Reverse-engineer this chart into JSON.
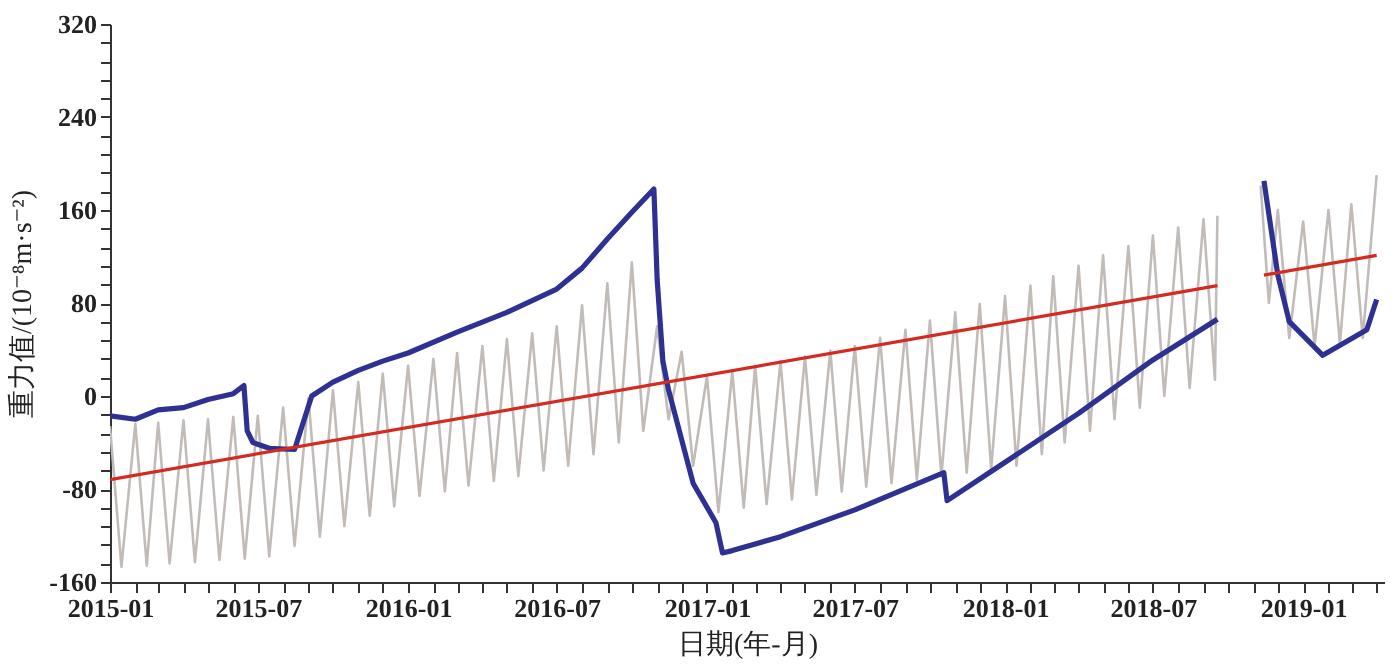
{
  "chart_data": {
    "type": "line",
    "xlabel": "日期(年-月)",
    "ylabel": "重力值/(10⁻⁸m·s⁻²)",
    "xlim": [
      "2015-01-01",
      "2019-04-10"
    ],
    "xticks": [
      "2015-01",
      {
        "value": "2015-02",
        "label": null
      },
      {
        "value": "2015-03",
        "label": null
      },
      {
        "value": "2015-04",
        "label": null
      },
      {
        "value": "2015-05",
        "label": null
      },
      {
        "value": "2015-06",
        "label": null
      },
      "2015-07",
      {
        "value": "2015-08",
        "label": null
      },
      {
        "value": "2015-09",
        "label": null
      },
      {
        "value": "2015-10",
        "label": null
      },
      {
        "value": "2015-11",
        "label": null
      },
      {
        "value": "2015-12",
        "label": null
      },
      "2016-01",
      {
        "value": "2016-02",
        "label": null
      },
      {
        "value": "2016-03",
        "label": null
      },
      {
        "value": "2016-04",
        "label": null
      },
      {
        "value": "2016-05",
        "label": null
      },
      {
        "value": "2016-06",
        "label": null
      },
      "2016-07",
      {
        "value": "2016-08",
        "label": null
      },
      {
        "value": "2016-09",
        "label": null
      },
      {
        "value": "2016-10",
        "label": null
      },
      {
        "value": "2016-11",
        "label": null
      },
      {
        "value": "2016-12",
        "label": null
      },
      "2017-01",
      {
        "value": "2017-02",
        "label": null
      },
      {
        "value": "2017-03",
        "label": null
      },
      {
        "value": "2017-04",
        "label": null
      },
      {
        "value": "2017-05",
        "label": null
      },
      {
        "value": "2017-06",
        "label": null
      },
      "2017-07",
      {
        "value": "2017-08",
        "label": null
      },
      {
        "value": "2017-09",
        "label": null
      },
      {
        "value": "2017-10",
        "label": null
      },
      {
        "value": "2017-11",
        "label": null
      },
      {
        "value": "2017-12",
        "label": null
      },
      "2018-01",
      {
        "value": "2018-02",
        "label": null
      },
      {
        "value": "2018-03",
        "label": null
      },
      {
        "value": "2018-04",
        "label": null
      },
      {
        "value": "2018-05",
        "label": null
      },
      {
        "value": "2018-06",
        "label": null
      },
      "2018-07",
      {
        "value": "2018-08",
        "label": null
      },
      {
        "value": "2018-09",
        "label": null
      },
      {
        "value": "2018-10",
        "label": null
      },
      {
        "value": "2018-11",
        "label": null
      },
      {
        "value": "2018-12",
        "label": null
      },
      "2019-01",
      {
        "value": "2019-02",
        "label": null
      },
      {
        "value": "2019-03",
        "label": null
      },
      {
        "value": "2019-04",
        "label": null
      }
    ],
    "ylim": [
      -160,
      320
    ],
    "yticks": [
      -160,
      {
        "value": -144,
        "label": null
      },
      {
        "value": -128,
        "label": null
      },
      {
        "value": -112,
        "label": null
      },
      {
        "value": -96,
        "label": null
      },
      -80,
      {
        "value": -64,
        "label": null
      },
      {
        "value": -48,
        "label": null
      },
      {
        "value": -32,
        "label": null
      },
      {
        "value": -16,
        "label": null
      },
      0,
      {
        "value": 16,
        "label": null
      },
      {
        "value": 32,
        "label": null
      },
      {
        "value": 48,
        "label": null
      },
      {
        "value": 64,
        "label": null
      },
      80,
      {
        "value": 96,
        "label": null
      },
      {
        "value": 112,
        "label": null
      },
      {
        "value": 128,
        "label": null
      },
      {
        "value": 144,
        "label": null
      },
      160,
      {
        "value": 176,
        "label": null
      },
      {
        "value": 192,
        "label": null
      },
      {
        "value": 208,
        "label": null
      },
      {
        "value": 224,
        "label": null
      },
      240,
      {
        "value": 256,
        "label": null
      },
      {
        "value": 272,
        "label": null
      },
      {
        "value": 288,
        "label": null
      },
      {
        "value": 304,
        "label": null
      },
      320
    ],
    "series": [
      {
        "color": "#c2bcb9",
        "x": [
          "2015-01-01",
          "2015-01-15",
          "2015-02-01",
          "2015-02-15",
          "2015-03-01",
          "2015-03-15",
          "2015-04-01",
          "2015-04-15",
          "2015-05-01",
          "2015-05-15",
          "2015-06-01",
          "2015-06-15",
          "2015-07-01",
          "2015-07-15",
          "2015-08-01",
          "2015-08-15",
          "2015-09-01",
          "2015-09-15",
          "2015-10-01",
          "2015-10-15",
          "2015-11-01",
          "2015-11-15",
          "2015-12-01",
          "2015-12-15",
          "2016-01-01",
          "2016-01-15",
          "2016-02-01",
          "2016-02-15",
          "2016-03-01",
          "2016-03-15",
          "2016-04-01",
          "2016-04-15",
          "2016-05-01",
          "2016-05-15",
          "2016-06-01",
          "2016-06-15",
          "2016-07-01",
          "2016-07-15",
          "2016-08-01",
          "2016-08-15",
          "2016-09-01",
          "2016-09-15",
          "2016-10-01",
          "2016-10-15",
          "2016-11-01",
          "2016-11-15",
          "2016-12-01",
          "2016-12-15",
          "2017-01-01",
          "2017-01-15",
          "2017-02-01",
          "2017-02-15",
          "2017-03-01",
          "2017-03-15",
          "2017-04-01",
          "2017-04-15",
          "2017-05-01",
          "2017-05-15",
          "2017-06-01",
          "2017-06-15",
          "2017-07-01",
          "2017-07-15",
          "2017-08-01",
          "2017-08-15",
          "2017-09-01",
          "2017-09-15",
          "2017-10-01",
          "2017-10-15",
          "2017-11-01",
          "2017-11-15",
          "2017-12-01",
          "2017-12-15",
          "2018-01-01",
          "2018-01-15",
          "2018-02-01",
          "2018-02-15",
          "2018-03-01",
          "2018-03-15",
          "2018-04-01",
          "2018-04-15",
          "2018-05-01",
          "2018-05-15",
          "2018-06-01",
          "2018-06-15",
          "2018-07-01",
          "2018-07-15",
          "2018-08-01",
          "2018-08-15",
          "2018-09-01",
          "2018-09-15",
          "2018-09-18",
          "2018-10-15",
          "2018-11-10",
          "2018-11-20",
          "2018-12-01",
          "2018-12-15",
          "2019-01-01",
          "2019-01-15",
          "2019-02-01",
          "2019-02-15",
          "2019-03-01",
          "2019-03-15",
          "2019-04-01"
        ],
        "values": [
          -26,
          -147,
          -24,
          -146,
          -23,
          -144,
          -21,
          -143,
          -20,
          -141,
          -18,
          -140,
          -17,
          -138,
          -10,
          -129,
          -2,
          -121,
          5,
          -112,
          12,
          -103,
          19,
          -95,
          26,
          -86,
          32,
          -82,
          37,
          -77,
          43,
          -73,
          49,
          -69,
          54,
          -64,
          60,
          -60,
          78,
          -50,
          97,
          -40,
          115,
          -30,
          60,
          -20,
          38,
          -60,
          17,
          -100,
          21,
          -96,
          26,
          -93,
          30,
          -89,
          34,
          -85,
          39,
          -82,
          43,
          -78,
          50,
          -75,
          57,
          -72,
          65,
          -69,
          72,
          -66,
          79,
          -63,
          86,
          -60,
          95,
          -50,
          103,
          -40,
          112,
          -30,
          121,
          -20,
          129,
          -10,
          138,
          0,
          145,
          7,
          152,
          14,
          155,
          null,
          181,
          80,
          160,
          50,
          150,
          43,
          160,
          45,
          165,
          50,
          190
        ]
      },
      {
        "color": "#2e3192",
        "x": [
          "2015-01-01",
          "2015-02-01",
          "2015-03-01",
          "2015-04-01",
          "2015-05-01",
          "2015-06-01",
          "2015-06-14",
          "2015-06-18",
          "2015-06-25",
          "2015-07-15",
          "2015-08-15",
          "2015-09-05",
          "2015-10-01",
          "2015-11-01",
          "2015-12-01",
          "2016-01-01",
          "2016-03-01",
          "2016-05-01",
          "2016-07-01",
          "2016-08-01",
          "2016-09-01",
          "2016-10-01",
          "2016-10-28",
          "2016-11-01",
          "2016-11-08",
          "2016-11-15",
          "2016-12-15",
          "2017-01-12",
          "2017-01-20",
          "2017-02-01",
          "2017-04-01",
          "2017-07-01",
          "2017-10-18",
          "2017-10-22",
          "2018-01-01",
          "2018-04-01",
          "2018-07-01",
          "2018-09-18",
          "2018-10-15",
          "2018-11-14",
          "2018-12-01",
          "2018-12-15",
          "2019-01-25",
          "2019-03-20",
          "2019-04-01"
        ],
        "values": [
          -17,
          -20,
          -12,
          -10,
          -3,
          2,
          9,
          -30,
          -40,
          -45,
          -46,
          0,
          12,
          22,
          30,
          37,
          55,
          72,
          92,
          110,
          135,
          158,
          178,
          100,
          30,
          5,
          -75,
          -109,
          -135,
          -133,
          -121,
          -98,
          -66,
          -90,
          -57,
          -15,
          31,
          66,
          null,
          185,
          104,
          64,
          35,
          57,
          83
        ]
      },
      {
        "color": "#d42a20",
        "x": [
          "2015-01-01",
          "2018-09-18",
          "2018-10-15",
          "2018-11-14",
          "2019-04-01"
        ],
        "values": [
          -72,
          95,
          null,
          104,
          121
        ]
      }
    ]
  }
}
